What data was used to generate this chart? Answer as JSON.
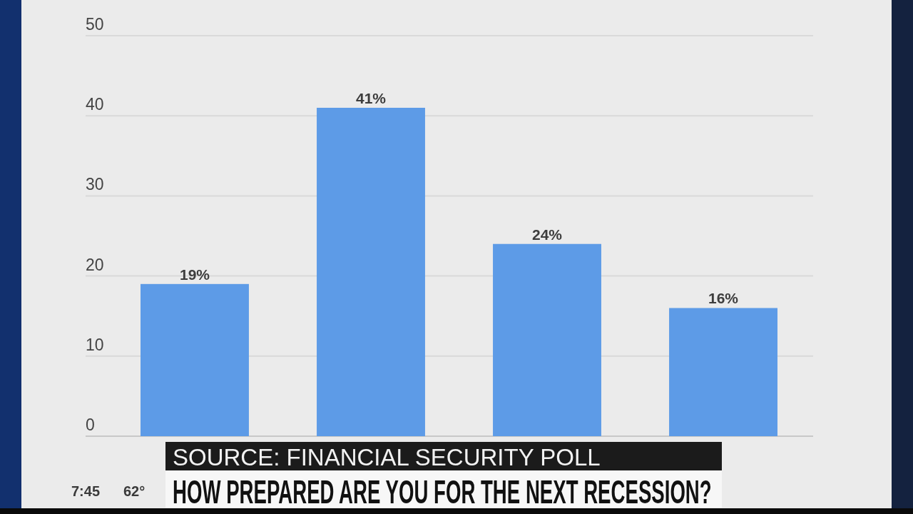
{
  "chart_data": {
    "type": "bar",
    "title": "HOW PREPARED ARE YOU FOR THE NEXT RECESSION?",
    "categories": [
      null,
      null,
      null,
      null
    ],
    "values": [
      19,
      41,
      24,
      16
    ],
    "value_labels": [
      "19%",
      "41%",
      "24%",
      "16%"
    ],
    "color": "#5d9be7",
    "ylim": [
      0,
      50
    ],
    "yticks": [
      0,
      10,
      20,
      30,
      40,
      50
    ],
    "grid": "y",
    "tick_labels": "y",
    "annotations": [
      "SOURCE: FINANCIAL SECURITY POLL",
      "7:45",
      "62°"
    ]
  }
}
